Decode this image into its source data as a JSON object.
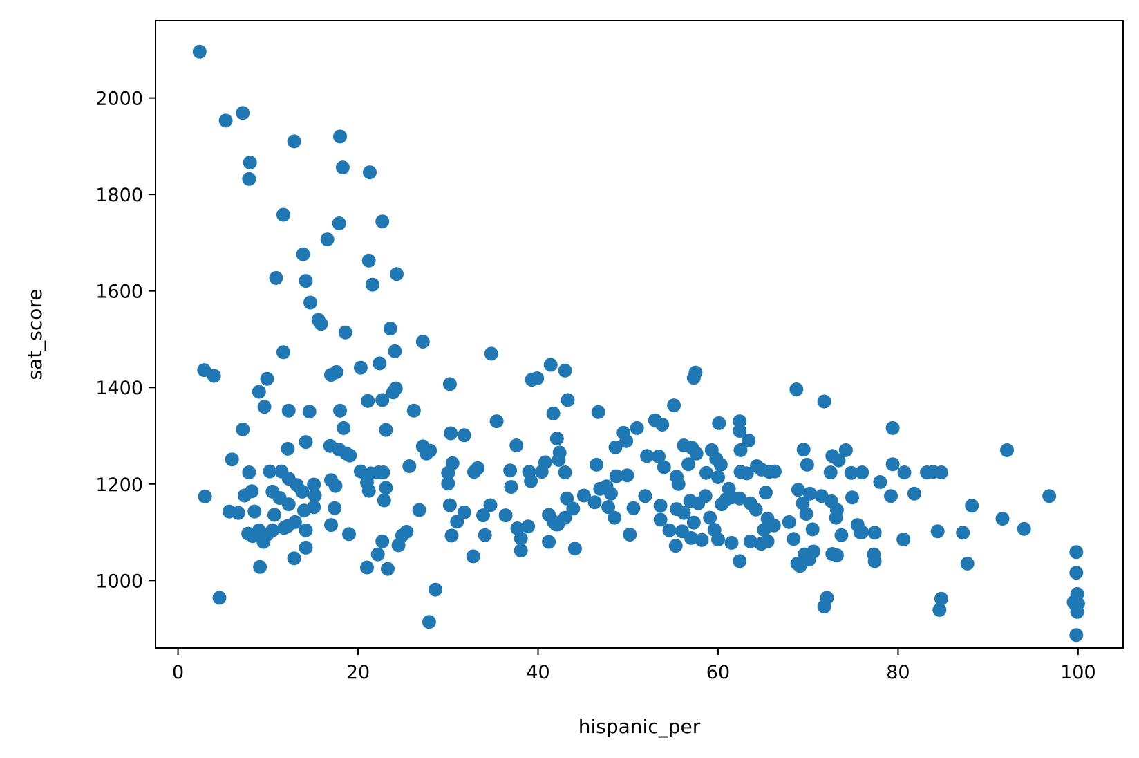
{
  "chart_data": {
    "type": "scatter",
    "title": "",
    "xlabel": "hispanic_per",
    "ylabel": "sat_score",
    "xlim": [
      -2.5,
      105
    ],
    "ylim": [
      860,
      2160
    ],
    "xticks": [
      0,
      20,
      40,
      60,
      80,
      100
    ],
    "yticks": [
      1000,
      1200,
      1400,
      1600,
      1800,
      2000
    ],
    "grid": false,
    "legend": "none",
    "marker_color": "#1f77b4",
    "series": [
      {
        "points": [
          [
            2.4,
            2096
          ],
          [
            2.9,
            1436
          ],
          [
            4.0,
            1424
          ],
          [
            3.0,
            1174
          ],
          [
            4.6,
            964
          ],
          [
            5.3,
            1953
          ],
          [
            7.2,
            1969
          ],
          [
            8.0,
            1866
          ],
          [
            7.9,
            1832
          ],
          [
            12.9,
            1910
          ],
          [
            18.0,
            1920
          ],
          [
            18.3,
            1856
          ],
          [
            21.3,
            1846
          ],
          [
            11.7,
            1758
          ],
          [
            17.9,
            1740
          ],
          [
            22.7,
            1744
          ],
          [
            16.6,
            1707
          ],
          [
            21.2,
            1663
          ],
          [
            21.6,
            1613
          ],
          [
            24.3,
            1635
          ],
          [
            10.9,
            1627
          ],
          [
            13.9,
            1676
          ],
          [
            14.2,
            1621
          ],
          [
            14.7,
            1576
          ],
          [
            15.6,
            1540
          ],
          [
            15.9,
            1532
          ],
          [
            18.6,
            1514
          ],
          [
            23.6,
            1522
          ],
          [
            24.1,
            1475
          ],
          [
            27.2,
            1495
          ],
          [
            11.7,
            1473
          ],
          [
            9.9,
            1418
          ],
          [
            17.0,
            1426
          ],
          [
            17.6,
            1432
          ],
          [
            20.3,
            1441
          ],
          [
            22.4,
            1450
          ],
          [
            30.2,
            1407
          ],
          [
            34.8,
            1470
          ],
          [
            9.0,
            1391
          ],
          [
            9.6,
            1360
          ],
          [
            12.3,
            1352
          ],
          [
            14.6,
            1350
          ],
          [
            18.0,
            1352
          ],
          [
            21.1,
            1372
          ],
          [
            22.7,
            1374
          ],
          [
            23.9,
            1390
          ],
          [
            24.2,
            1398
          ],
          [
            26.2,
            1352
          ],
          [
            7.2,
            1313
          ],
          [
            18.4,
            1316
          ],
          [
            23.1,
            1312
          ],
          [
            35.4,
            1330
          ],
          [
            39.3,
            1416
          ],
          [
            39.9,
            1419
          ],
          [
            41.4,
            1447
          ],
          [
            43.0,
            1435
          ],
          [
            43.3,
            1374
          ],
          [
            41.7,
            1346
          ],
          [
            46.7,
            1349
          ],
          [
            53.0,
            1332
          ],
          [
            53.8,
            1323
          ],
          [
            55.1,
            1363
          ],
          [
            57.3,
            1420
          ],
          [
            57.5,
            1431
          ],
          [
            60.1,
            1326
          ],
          [
            62.4,
            1330
          ],
          [
            63.4,
            1290
          ],
          [
            68.7,
            1396
          ],
          [
            71.8,
            1371
          ],
          [
            79.4,
            1316
          ],
          [
            92.1,
            1270
          ],
          [
            6.0,
            1251
          ],
          [
            12.2,
            1273
          ],
          [
            14.2,
            1287
          ],
          [
            16.9,
            1279
          ],
          [
            17.9,
            1271
          ],
          [
            18.7,
            1263
          ],
          [
            19.1,
            1259
          ],
          [
            20.3,
            1226
          ],
          [
            21.4,
            1222
          ],
          [
            22.3,
            1224
          ],
          [
            22.8,
            1224
          ],
          [
            25.7,
            1237
          ],
          [
            27.2,
            1278
          ],
          [
            27.6,
            1263
          ],
          [
            28.0,
            1269
          ],
          [
            30.3,
            1305
          ],
          [
            31.8,
            1301
          ],
          [
            30.5,
            1243
          ],
          [
            30.0,
            1223
          ],
          [
            32.9,
            1225
          ],
          [
            33.3,
            1233
          ],
          [
            36.9,
            1228
          ],
          [
            37.6,
            1280
          ],
          [
            39.0,
            1225
          ],
          [
            40.4,
            1225
          ],
          [
            40.8,
            1245
          ],
          [
            42.1,
            1294
          ],
          [
            42.4,
            1265
          ],
          [
            42.3,
            1250
          ],
          [
            43.0,
            1224
          ],
          [
            46.5,
            1240
          ],
          [
            48.6,
            1276
          ],
          [
            49.5,
            1306
          ],
          [
            49.8,
            1289
          ],
          [
            51.0,
            1316
          ],
          [
            52.1,
            1258
          ],
          [
            53.4,
            1257
          ],
          [
            54.0,
            1235
          ],
          [
            55.4,
            1215
          ],
          [
            56.2,
            1280
          ],
          [
            56.7,
            1241
          ],
          [
            57.1,
            1275
          ],
          [
            57.6,
            1263
          ],
          [
            58.7,
            1223
          ],
          [
            59.3,
            1270
          ],
          [
            59.8,
            1252
          ],
          [
            60.3,
            1240
          ],
          [
            60.0,
            1214
          ],
          [
            62.5,
            1270
          ],
          [
            62.4,
            1310
          ],
          [
            62.5,
            1225
          ],
          [
            63.2,
            1222
          ],
          [
            64.3,
            1237
          ],
          [
            64.8,
            1230
          ],
          [
            65.7,
            1225
          ],
          [
            66.3,
            1226
          ],
          [
            69.5,
            1271
          ],
          [
            69.9,
            1240
          ],
          [
            72.5,
            1224
          ],
          [
            72.7,
            1258
          ],
          [
            73.4,
            1249
          ],
          [
            74.2,
            1270
          ],
          [
            74.8,
            1223
          ],
          [
            76.0,
            1224
          ],
          [
            79.4,
            1241
          ],
          [
            80.7,
            1224
          ],
          [
            83.2,
            1224
          ],
          [
            83.9,
            1225
          ],
          [
            84.8,
            1224
          ],
          [
            7.9,
            1224
          ],
          [
            10.2,
            1226
          ],
          [
            11.5,
            1226
          ],
          [
            12.3,
            1211
          ],
          [
            13.2,
            1198
          ],
          [
            15.1,
            1199
          ],
          [
            17.0,
            1208
          ],
          [
            17.5,
            1196
          ],
          [
            21.0,
            1203
          ],
          [
            21.2,
            1186
          ],
          [
            23.1,
            1192
          ],
          [
            30.0,
            1201
          ],
          [
            37.0,
            1194
          ],
          [
            39.2,
            1206
          ],
          [
            8.2,
            1185
          ],
          [
            7.4,
            1176
          ],
          [
            10.5,
            1184
          ],
          [
            11.3,
            1171
          ],
          [
            12.3,
            1158
          ],
          [
            13.8,
            1184
          ],
          [
            15.2,
            1176
          ],
          [
            14.0,
            1145
          ],
          [
            15.1,
            1152
          ],
          [
            17.4,
            1150
          ],
          [
            22.9,
            1166
          ],
          [
            26.8,
            1146
          ],
          [
            30.2,
            1156
          ],
          [
            31.8,
            1141
          ],
          [
            33.9,
            1135
          ],
          [
            34.7,
            1156
          ],
          [
            36.4,
            1135
          ],
          [
            41.2,
            1136
          ],
          [
            41.7,
            1122
          ],
          [
            42.2,
            1116
          ],
          [
            43.0,
            1130
          ],
          [
            43.2,
            1170
          ],
          [
            43.9,
            1149
          ],
          [
            45.1,
            1176
          ],
          [
            46.3,
            1162
          ],
          [
            46.9,
            1190
          ],
          [
            47.6,
            1195
          ],
          [
            47.8,
            1152
          ],
          [
            48.1,
            1180
          ],
          [
            48.5,
            1130
          ],
          [
            48.7,
            1216
          ],
          [
            49.9,
            1218
          ],
          [
            50.6,
            1150
          ],
          [
            51.9,
            1175
          ],
          [
            53.6,
            1155
          ],
          [
            53.6,
            1126
          ],
          [
            55.4,
            1148
          ],
          [
            55.6,
            1200
          ],
          [
            56.2,
            1140
          ],
          [
            56.9,
            1165
          ],
          [
            57.3,
            1120
          ],
          [
            57.8,
            1160
          ],
          [
            58.6,
            1175
          ],
          [
            59.1,
            1130
          ],
          [
            60.4,
            1158
          ],
          [
            60.9,
            1168
          ],
          [
            61.2,
            1190
          ],
          [
            61.5,
            1172
          ],
          [
            62.4,
            1170
          ],
          [
            63.6,
            1160
          ],
          [
            64.2,
            1147
          ],
          [
            65.3,
            1182
          ],
          [
            65.5,
            1128
          ],
          [
            66.2,
            1114
          ],
          [
            67.9,
            1121
          ],
          [
            68.9,
            1188
          ],
          [
            69.4,
            1160
          ],
          [
            69.8,
            1138
          ],
          [
            70.2,
            1180
          ],
          [
            70.5,
            1106
          ],
          [
            71.5,
            1175
          ],
          [
            72.6,
            1164
          ],
          [
            73.2,
            1146
          ],
          [
            73.1,
            1130
          ],
          [
            74.9,
            1172
          ],
          [
            75.5,
            1115
          ],
          [
            76.0,
            1100
          ],
          [
            77.4,
            1099
          ],
          [
            78.0,
            1204
          ],
          [
            79.2,
            1175
          ],
          [
            81.8,
            1180
          ],
          [
            88.2,
            1155
          ],
          [
            91.6,
            1128
          ],
          [
            94.0,
            1107
          ],
          [
            96.8,
            1175
          ],
          [
            5.7,
            1143
          ],
          [
            6.7,
            1140
          ],
          [
            7.8,
            1097
          ],
          [
            8.5,
            1143
          ],
          [
            8.3,
            1092
          ],
          [
            9.0,
            1104
          ],
          [
            9.5,
            1080
          ],
          [
            9.9,
            1095
          ],
          [
            10.7,
            1136
          ],
          [
            10.5,
            1104
          ],
          [
            11.8,
            1109
          ],
          [
            12.2,
            1113
          ],
          [
            13.0,
            1121
          ],
          [
            14.2,
            1104
          ],
          [
            14.2,
            1068
          ],
          [
            17.0,
            1115
          ],
          [
            19.0,
            1096
          ],
          [
            12.9,
            1046
          ],
          [
            22.2,
            1054
          ],
          [
            22.7,
            1081
          ],
          [
            24.5,
            1073
          ],
          [
            24.9,
            1093
          ],
          [
            25.4,
            1101
          ],
          [
            30.4,
            1093
          ],
          [
            31.0,
            1122
          ],
          [
            34.1,
            1094
          ],
          [
            37.7,
            1108
          ],
          [
            38.1,
            1062
          ],
          [
            38.1,
            1087
          ],
          [
            38.9,
            1112
          ],
          [
            41.2,
            1080
          ],
          [
            42.0,
            1116
          ],
          [
            44.1,
            1066
          ],
          [
            50.2,
            1095
          ],
          [
            54.6,
            1104
          ],
          [
            55.3,
            1072
          ],
          [
            56.0,
            1102
          ],
          [
            57.0,
            1088
          ],
          [
            58.2,
            1084
          ],
          [
            59.6,
            1105
          ],
          [
            60.0,
            1085
          ],
          [
            61.5,
            1078
          ],
          [
            62.4,
            1040
          ],
          [
            63.6,
            1081
          ],
          [
            64.8,
            1076
          ],
          [
            65.1,
            1105
          ],
          [
            65.5,
            1081
          ],
          [
            68.4,
            1086
          ],
          [
            68.8,
            1035
          ],
          [
            69.1,
            1030
          ],
          [
            69.6,
            1054
          ],
          [
            70.1,
            1043
          ],
          [
            70.6,
            1060
          ],
          [
            71.8,
            946
          ],
          [
            72.1,
            964
          ],
          [
            72.7,
            1055
          ],
          [
            73.2,
            1052
          ],
          [
            73.7,
            1094
          ],
          [
            75.8,
            1100
          ],
          [
            77.3,
            1054
          ],
          [
            77.4,
            1040
          ],
          [
            80.6,
            1085
          ],
          [
            84.4,
            1102
          ],
          [
            84.6,
            939
          ],
          [
            84.8,
            962
          ],
          [
            87.2,
            1099
          ],
          [
            87.7,
            1035
          ],
          [
            9.1,
            1028
          ],
          [
            21.0,
            1027
          ],
          [
            23.3,
            1024
          ],
          [
            28.6,
            981
          ],
          [
            27.9,
            914
          ],
          [
            32.8,
            1050
          ],
          [
            99.5,
            955
          ],
          [
            99.7,
            950
          ],
          [
            99.8,
            1059
          ],
          [
            99.8,
            1016
          ],
          [
            99.9,
            972
          ],
          [
            99.9,
            935
          ],
          [
            99.8,
            887
          ],
          [
            100.0,
            952
          ]
        ]
      }
    ]
  }
}
